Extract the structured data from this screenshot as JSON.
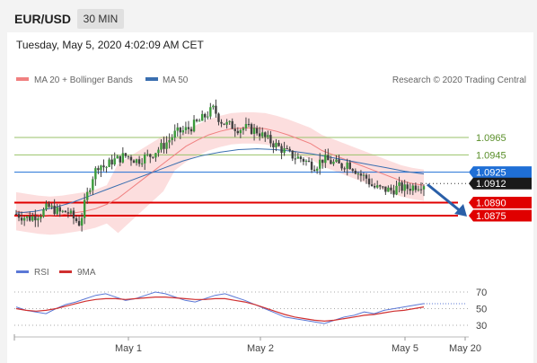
{
  "header": {
    "symbol": "EUR/USD",
    "timeframe": "30 MIN",
    "datetime": "Tuesday, May 5, 2020 4:02:09 AM CET"
  },
  "legend": {
    "ma20_bb": "MA 20 + Bollinger Bands",
    "ma50": "MA 50",
    "credit": "Research © 2020 Trading Central",
    "rsi": "RSI",
    "rsi_ma": "9MA"
  },
  "colors": {
    "bb_fill": "#fbd3d3",
    "ma20": "#f08080",
    "ma50": "#3a6fb0",
    "candle": "#404040",
    "support": "#e00000",
    "resistance": "#9ac26a",
    "pivot": "#1f6fd6",
    "rsi": "#5b78d6",
    "rsi_ma": "#d03030"
  },
  "chart_data": {
    "type": "candlestick",
    "price_axis": {
      "levels": [
        {
          "value": 1.0965,
          "label": "1.0965",
          "kind": "resistance"
        },
        {
          "value": 1.0945,
          "label": "1.0945",
          "kind": "resistance"
        },
        {
          "value": 1.0925,
          "label": "1.0925",
          "kind": "pivot"
        },
        {
          "value": 1.0912,
          "label": "1.0912",
          "kind": "last"
        },
        {
          "value": 1.089,
          "label": "1.0890",
          "kind": "support"
        },
        {
          "value": 1.0875,
          "label": "1.0875",
          "kind": "support"
        }
      ]
    },
    "x_axis": {
      "ticks": [
        "May 1",
        "May 2",
        "May 5",
        "May 20"
      ]
    },
    "price_path": [
      1.0877,
      1.0874,
      1.0872,
      1.0875,
      1.0878,
      1.0885,
      1.0882,
      1.0878,
      1.088,
      1.0872,
      1.0866,
      1.0895,
      1.092,
      1.0935,
      1.093,
      1.0938,
      1.094,
      1.0944,
      1.0942,
      1.0938,
      1.0942,
      1.0944,
      1.095,
      1.0955,
      1.0962,
      1.097,
      1.0972,
      1.0975,
      1.098,
      1.0985,
      1.0992,
      1.0998,
      1.0985,
      1.098,
      1.0978,
      1.0975,
      1.0976,
      1.0974,
      1.0972,
      1.0965,
      1.096,
      1.0955,
      1.095,
      1.0945,
      1.0942,
      1.094,
      1.0935,
      1.0932,
      1.094,
      1.0938,
      1.0935,
      1.0932,
      1.0936,
      1.093,
      1.0922,
      1.0918,
      1.0908,
      1.0906,
      1.0905,
      1.0904,
      1.0908,
      1.0906,
      1.0908,
      1.091,
      1.0912
    ],
    "ma20_path": [
      1.088,
      1.0878,
      1.0876,
      1.0875,
      1.0876,
      1.0878,
      1.088,
      1.0883,
      1.0888,
      1.0895,
      1.0905,
      1.0915,
      1.0925,
      1.0935,
      1.0945,
      1.0955,
      1.0962,
      1.0968,
      1.0972,
      1.0975,
      1.0976,
      1.0976,
      1.0975,
      1.0972,
      1.0968,
      1.0963,
      1.0958,
      1.095,
      1.0945,
      1.094,
      1.0935,
      1.093,
      1.0925,
      1.092,
      1.0915,
      1.0912,
      1.091
    ],
    "ma50_path": [
      1.0878,
      1.088,
      1.0884,
      1.089,
      1.0898,
      1.0906,
      1.0914,
      1.0922,
      1.093,
      1.0938,
      1.0944,
      1.0948,
      1.0951,
      1.0952,
      1.0951,
      1.0949,
      1.0946,
      1.0942,
      1.0938,
      1.0934,
      1.093,
      1.0926,
      1.0923
    ],
    "forecast": {
      "from": 1.0912,
      "to": 1.0875
    },
    "rsi": {
      "levels": [
        70,
        50,
        30
      ],
      "rsi_path": [
        52,
        48,
        46,
        44,
        50,
        55,
        58,
        62,
        66,
        68,
        64,
        60,
        62,
        66,
        70,
        68,
        64,
        60,
        58,
        62,
        66,
        68,
        64,
        60,
        55,
        50,
        45,
        40,
        38,
        36,
        34,
        32,
        36,
        40,
        42,
        46,
        44,
        48,
        50,
        52,
        54,
        56
      ],
      "ma_path": [
        50,
        48,
        47,
        48,
        50,
        53,
        56,
        59,
        61,
        62,
        62,
        61,
        62,
        63,
        64,
        64,
        63,
        62,
        61,
        61,
        62,
        62,
        60,
        58,
        55,
        51,
        47,
        43,
        40,
        38,
        36,
        35,
        36,
        38,
        40,
        42,
        43,
        45,
        47,
        48,
        50,
        52
      ]
    }
  }
}
